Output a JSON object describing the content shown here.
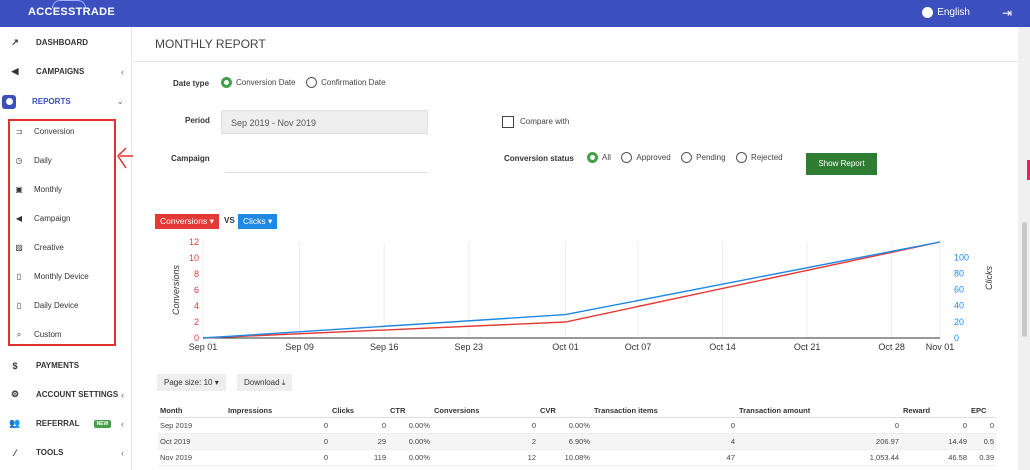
{
  "header": {
    "logo": "ACCESSTRADE",
    "language": "English"
  },
  "sidebar": {
    "items": [
      {
        "label": "DASHBOARD",
        "icon": "trend-icon",
        "chev": ""
      },
      {
        "label": "CAMPAIGNS",
        "icon": "megaphone-icon",
        "chev": "‹"
      },
      {
        "label": "REPORTS",
        "icon": "pie-icon",
        "chev": "⌄"
      }
    ],
    "sub_items": [
      {
        "label": "Conversion",
        "icon": "cart-icon"
      },
      {
        "label": "Daily",
        "icon": "clock-icon"
      },
      {
        "label": "Monthly",
        "icon": "calendar-icon"
      },
      {
        "label": "Campaign",
        "icon": "megaphone-icon"
      },
      {
        "label": "Creative",
        "icon": "image-icon"
      },
      {
        "label": "Monthly Device",
        "icon": "phone-icon"
      },
      {
        "label": "Daily Device",
        "icon": "phone-icon"
      },
      {
        "label": "Custom",
        "icon": "search-icon"
      }
    ],
    "lower_items": [
      {
        "label": "PAYMENTS",
        "icon": "dollar-icon",
        "chev": ""
      },
      {
        "label": "ACCOUNT SETTINGS",
        "icon": "gear-icon",
        "chev": "‹"
      },
      {
        "label": "REFERRAL",
        "icon": "users-icon",
        "chev": "‹",
        "badge": "NEW"
      },
      {
        "label": "TOOLS",
        "icon": "wand-icon",
        "chev": "‹"
      }
    ]
  },
  "main": {
    "title": "MONTHLY REPORT",
    "date_type_label": "Date type",
    "date_type_options": [
      "Conversion Date",
      "Confirmation Date"
    ],
    "period_label": "Period",
    "period_value": "Sep 2019 - Nov 2019",
    "compare_label": "Compare with",
    "campaign_label": "Campaign",
    "status_label": "Conversion status",
    "status_options": [
      "All",
      "Approved",
      "Pending",
      "Rejected"
    ],
    "show_button": "Show Report",
    "metric_left": "Conversions",
    "vs": "VS",
    "metric_right": "Clicks",
    "page_size": "Page size: 10",
    "download": "Download"
  },
  "colors": {
    "conversions": "#e53935",
    "clicks": "#1e88e5",
    "accent": "#3b4fbf",
    "button": "#2e7d32"
  },
  "chart_data": {
    "type": "line",
    "x": [
      "Sep 01",
      "Oct 01",
      "Nov 01"
    ],
    "x_ticks": [
      "Sep 01",
      "Sep 09",
      "Sep 16",
      "Sep 23",
      "Oct 01",
      "Oct 07",
      "Oct 14",
      "Oct 21",
      "Oct 28",
      "Nov 01"
    ],
    "series": [
      {
        "name": "Conversions",
        "axis": "left",
        "values": [
          0,
          2,
          12
        ]
      },
      {
        "name": "Clicks",
        "axis": "right",
        "values": [
          0,
          29,
          119
        ]
      }
    ],
    "ylabel_left": "Conversions",
    "ylabel_right": "Clicks",
    "ylim_left": [
      0,
      12
    ],
    "yticks_left": [
      0,
      2,
      4,
      6,
      8,
      10,
      12
    ],
    "ylim_right": [
      0,
      119
    ],
    "yticks_right": [
      0,
      20,
      40,
      60,
      80,
      100
    ]
  },
  "table": {
    "columns": [
      "Month",
      "Impressions",
      "Clicks",
      "CTR",
      "Conversions",
      "CVR",
      "Transaction items",
      "Transaction amount",
      "Reward",
      "EPC"
    ],
    "rows": [
      [
        "Sep 2019",
        "0",
        "0",
        "0.00%",
        "0",
        "0.00%",
        "0",
        "0",
        "0",
        "0"
      ],
      [
        "Oct 2019",
        "0",
        "29",
        "0.00%",
        "2",
        "6.90%",
        "4",
        "206.97",
        "14.49",
        "0.5"
      ],
      [
        "Nov 2019",
        "0",
        "119",
        "0.00%",
        "12",
        "10.08%",
        "47",
        "1,053.44",
        "46.58",
        "0.39"
      ]
    ]
  }
}
